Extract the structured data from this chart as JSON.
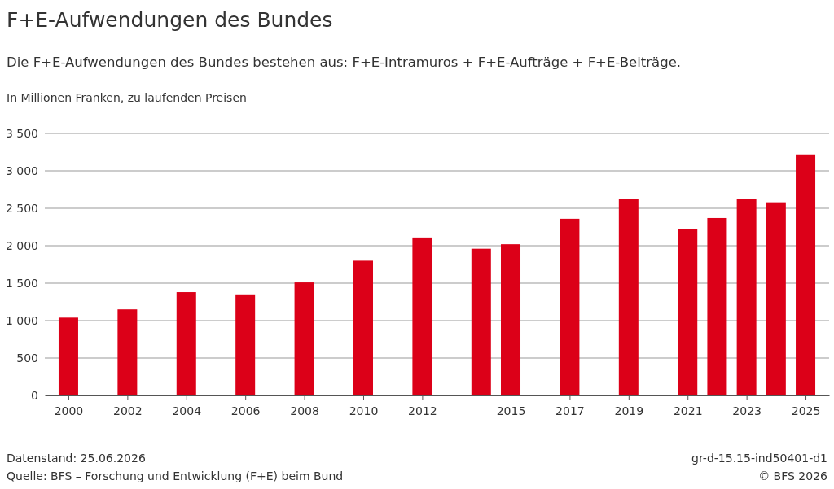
{
  "chart_data": {
    "type": "bar",
    "title": "F+E-Aufwendungen des Bundes",
    "subtitle": "Die F+E-Aufwendungen des Bundes bestehen aus: F+E-Intramuros + F+E-Aufträge + F+E-Beiträge.",
    "ylabel": "In Millionen Franken, zu laufenden Preisen",
    "x": [
      2000,
      2002,
      2004,
      2006,
      2008,
      2010,
      2012,
      2014,
      2015,
      2017,
      2019,
      2021,
      2022,
      2023,
      2024,
      2025
    ],
    "values": [
      1040,
      1150,
      1380,
      1350,
      1510,
      1800,
      2110,
      1960,
      2020,
      2360,
      2630,
      2220,
      2370,
      2620,
      2580,
      3220
    ],
    "color": "#dc0018",
    "xlim": [
      1999.2,
      2025.8
    ],
    "xticks": [
      2000,
      2002,
      2004,
      2006,
      2008,
      2010,
      2012,
      2015,
      2017,
      2019,
      2021,
      2023,
      2025
    ],
    "ylim": [
      0,
      3500
    ],
    "yticks": [
      0,
      500,
      {
        "value": 1000,
        "label": "1 000"
      },
      {
        "value": 1500,
        "label": "1 500"
      },
      {
        "value": 2000,
        "label": "2 000"
      },
      {
        "value": 2500,
        "label": "2 500"
      },
      {
        "value": 3000,
        "label": "3 000"
      },
      {
        "value": 3500,
        "label": "3 500"
      }
    ],
    "grid": "y",
    "annotations": [
      "Datenstand: 25.06.2026",
      "Quelle: BFS – Forschung und Entwicklung (F+E) beim Bund",
      "gr-d-15.15-ind50401-d1",
      "© BFS 2026"
    ]
  }
}
